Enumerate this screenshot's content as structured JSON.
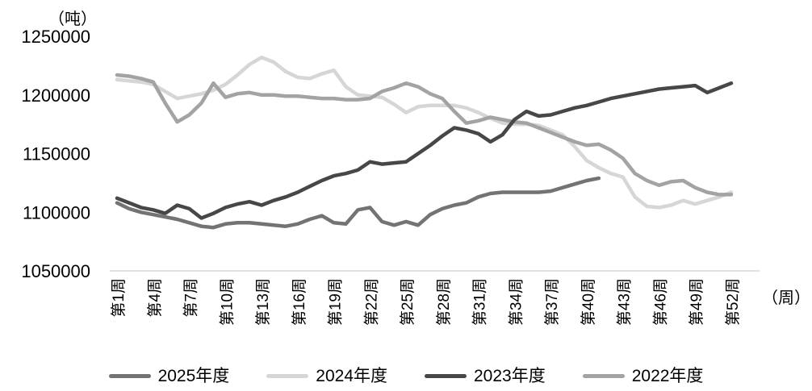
{
  "chart_data": {
    "type": "line",
    "title": "",
    "ylabel_unit": "（吨）",
    "xlabel_unit": "（周）",
    "grid": false,
    "legend_position": "bottom",
    "ylim": [
      1050000,
      1250000
    ],
    "y_tick_values": [
      1250000,
      1200000,
      1150000,
      1100000,
      1050000
    ],
    "y_tick_labels": [
      "1250000",
      "1200000",
      "1150000",
      "1100000",
      "1050000"
    ],
    "x_tick_weeks": [
      1,
      4,
      7,
      10,
      13,
      16,
      19,
      22,
      25,
      28,
      31,
      34,
      37,
      40,
      43,
      46,
      49,
      52
    ],
    "x_tick_labels": [
      "第1周",
      "第4周",
      "第7周",
      "第10周",
      "第13周",
      "第16周",
      "第19周",
      "第22周",
      "第25周",
      "第28周",
      "第31周",
      "第34周",
      "第37周",
      "第40周",
      "第43周",
      "第46周",
      "第49周",
      "第52周"
    ],
    "x_total_weeks": 52,
    "axis_line_color": "#d9d9d9",
    "series": [
      {
        "name": "2025年度",
        "color": "#737373",
        "start_week": 1,
        "values": [
          1108000,
          1103000,
          1100000,
          1098000,
          1096000,
          1094000,
          1091000,
          1088000,
          1087000,
          1090000,
          1091000,
          1091000,
          1090000,
          1089000,
          1088000,
          1090000,
          1094000,
          1097000,
          1091000,
          1090000,
          1102000,
          1104000,
          1092000,
          1089000,
          1092000,
          1089000,
          1098000,
          1103000,
          1106000,
          1108000,
          1113000,
          1116000,
          1117000,
          1117000,
          1117000,
          1117000,
          1118000,
          1121000,
          1124000,
          1127000,
          1129000
        ]
      },
      {
        "name": "2024年度",
        "color": "#d6d6d6",
        "start_week": 1,
        "values": [
          1213000,
          1212000,
          1211000,
          1209000,
          1203000,
          1197000,
          1199000,
          1201000,
          1204000,
          1209000,
          1217000,
          1226000,
          1232000,
          1228000,
          1220000,
          1215000,
          1214000,
          1218000,
          1221000,
          1207000,
          1200000,
          1199000,
          1198000,
          1192000,
          1185000,
          1190000,
          1191000,
          1191000,
          1191000,
          1189000,
          1185000,
          1180000,
          1176000,
          1175000,
          1175000,
          1174000,
          1170000,
          1166000,
          1156000,
          1144000,
          1138000,
          1133000,
          1130000,
          1113000,
          1105000,
          1104000,
          1106000,
          1110000,
          1107000,
          1110000,
          1113000,
          1117000
        ]
      },
      {
        "name": "2023年度",
        "color": "#474747",
        "start_week": 1,
        "values": [
          1112000,
          1108000,
          1104000,
          1102000,
          1099000,
          1106000,
          1103000,
          1095000,
          1099000,
          1104000,
          1107000,
          1109000,
          1106000,
          1110000,
          1113000,
          1117000,
          1122000,
          1127000,
          1131000,
          1133000,
          1136000,
          1143000,
          1141000,
          1142000,
          1143000,
          1150000,
          1157000,
          1165000,
          1172000,
          1170000,
          1167000,
          1160000,
          1166000,
          1179000,
          1186000,
          1182000,
          1183000,
          1186000,
          1189000,
          1191000,
          1194000,
          1197000,
          1199000,
          1201000,
          1203000,
          1205000,
          1206000,
          1207000,
          1208000,
          1202000,
          1206000,
          1210000
        ]
      },
      {
        "name": "2022年度",
        "color": "#a3a3a3",
        "start_week": 1,
        "values": [
          1217000,
          1216000,
          1214000,
          1211000,
          1193000,
          1177000,
          1183000,
          1193000,
          1210000,
          1198000,
          1201000,
          1202000,
          1200000,
          1200000,
          1199000,
          1199000,
          1198000,
          1197000,
          1197000,
          1196000,
          1196000,
          1197000,
          1203000,
          1206000,
          1210000,
          1207000,
          1201000,
          1197000,
          1186000,
          1176000,
          1178000,
          1181000,
          1179000,
          1177000,
          1176000,
          1172000,
          1168000,
          1164000,
          1160000,
          1157000,
          1158000,
          1153000,
          1146000,
          1133000,
          1127000,
          1123000,
          1126000,
          1127000,
          1121000,
          1117000,
          1115000,
          1115000
        ]
      }
    ]
  }
}
